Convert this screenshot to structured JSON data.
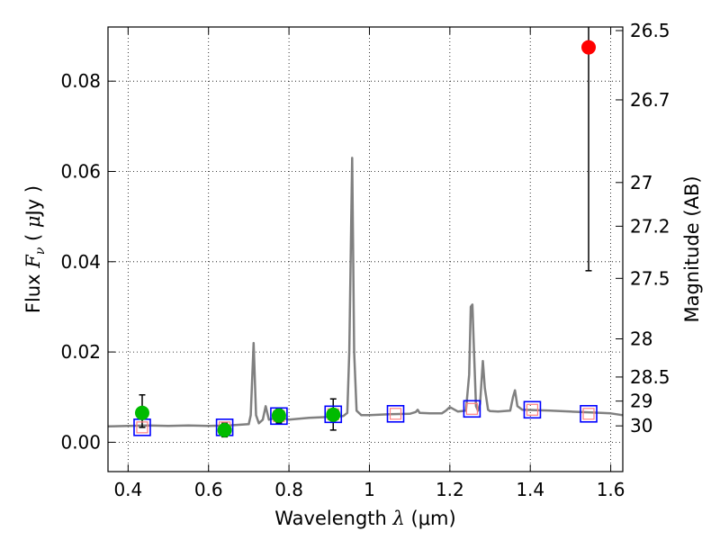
{
  "chart_data": {
    "type": "line",
    "xlabel": "Wavelength  λ (μm)",
    "xlabel_parts": {
      "prefix": "Wavelength  ",
      "symbol": "λ",
      "unit": " (μm)"
    },
    "ylabel": "Flux  Fν  ( μJy )",
    "ylabel_parts": {
      "prefix": "Flux  ",
      "symbol": "F",
      "sub": "ν",
      "unit_open": "  ( ",
      "mu": "μ",
      "unit_rest": "Jy )"
    },
    "y2label": "Magnitude (AB)",
    "xlim": [
      0.35,
      1.63
    ],
    "ylim": [
      -0.0065,
      0.092
    ],
    "grid": true,
    "x_ticks": [
      {
        "value": 0.4,
        "label": "0.4"
      },
      {
        "value": 0.6,
        "label": "0.6"
      },
      {
        "value": 0.8,
        "label": "0.8"
      },
      {
        "value": 1.0,
        "label": "1"
      },
      {
        "value": 1.2,
        "label": "1.2"
      },
      {
        "value": 1.4,
        "label": "1.4"
      },
      {
        "value": 1.6,
        "label": "1.6"
      }
    ],
    "y_ticks": [
      {
        "value": 0.0,
        "label": "0.00"
      },
      {
        "value": 0.02,
        "label": "0.02"
      },
      {
        "value": 0.04,
        "label": "0.04"
      },
      {
        "value": 0.06,
        "label": "0.06"
      },
      {
        "value": 0.08,
        "label": "0.08"
      }
    ],
    "y2_ticks": [
      {
        "value": 26.5,
        "label": "26.5"
      },
      {
        "value": 26.7,
        "label": "26.7"
      },
      {
        "value": 27.0,
        "label": "27"
      },
      {
        "value": 27.2,
        "label": "27.2"
      },
      {
        "value": 27.5,
        "label": "27.5"
      },
      {
        "value": 28.0,
        "label": "28"
      },
      {
        "value": 28.5,
        "label": "28.5"
      },
      {
        "value": 29.0,
        "label": "29"
      },
      {
        "value": 30.0,
        "label": "30"
      }
    ],
    "colors": {
      "spectrum": "#808080",
      "detection": "#00bb00",
      "upper_limit": "#ff0000",
      "model": "#0000ff",
      "model_inner": "#ff8080",
      "errorbar": "#000000",
      "grid": "#000000"
    },
    "spectrum": {
      "x": [
        0.35,
        0.4,
        0.45,
        0.5,
        0.55,
        0.6,
        0.65,
        0.7,
        0.705,
        0.712,
        0.718,
        0.725,
        0.735,
        0.742,
        0.75,
        0.775,
        0.8,
        0.85,
        0.9,
        0.935,
        0.945,
        0.95,
        0.957,
        0.962,
        0.968,
        0.98,
        1.0,
        1.05,
        1.1,
        1.115,
        1.12,
        1.125,
        1.15,
        1.18,
        1.19,
        1.2,
        1.22,
        1.24,
        1.248,
        1.252,
        1.256,
        1.26,
        1.265,
        1.27,
        1.275,
        1.282,
        1.287,
        1.295,
        1.3,
        1.32,
        1.35,
        1.357,
        1.362,
        1.368,
        1.38,
        1.45,
        1.5,
        1.55,
        1.6,
        1.63
      ],
      "y": [
        0.0035,
        0.0036,
        0.0037,
        0.0036,
        0.0037,
        0.0036,
        0.0037,
        0.004,
        0.006,
        0.022,
        0.006,
        0.0042,
        0.005,
        0.008,
        0.005,
        0.0055,
        0.005,
        0.0054,
        0.0056,
        0.0058,
        0.0065,
        0.02,
        0.063,
        0.02,
        0.007,
        0.006,
        0.006,
        0.0062,
        0.0063,
        0.0067,
        0.0072,
        0.0065,
        0.0064,
        0.0064,
        0.007,
        0.0078,
        0.0068,
        0.007,
        0.015,
        0.03,
        0.0305,
        0.02,
        0.008,
        0.007,
        0.0085,
        0.018,
        0.012,
        0.0072,
        0.0069,
        0.0068,
        0.007,
        0.01,
        0.0115,
        0.008,
        0.0072,
        0.007,
        0.0068,
        0.0066,
        0.0064,
        0.006
      ]
    },
    "series": [
      {
        "marker": "square",
        "values": [
          {
            "x": 0.435,
            "y": 0.0033
          },
          {
            "x": 0.64,
            "y": 0.0033
          },
          {
            "x": 0.775,
            "y": 0.0058
          },
          {
            "x": 0.91,
            "y": 0.0062
          },
          {
            "x": 1.065,
            "y": 0.0063
          },
          {
            "x": 1.255,
            "y": 0.0074
          },
          {
            "x": 1.405,
            "y": 0.0072
          },
          {
            "x": 1.545,
            "y": 0.0063
          }
        ]
      },
      {
        "marker": "circle",
        "values": [
          {
            "x": 0.435,
            "y": 0.0065,
            "yerr_lo": 0.0033,
            "yerr_hi": 0.0105
          },
          {
            "x": 0.64,
            "y": 0.0027,
            "yerr_lo": 0.0012,
            "yerr_hi": 0.0042
          },
          {
            "x": 0.775,
            "y": 0.0059,
            "yerr_lo": 0.0043,
            "yerr_hi": 0.0075
          },
          {
            "x": 0.91,
            "y": 0.0061,
            "yerr_lo": 0.0027,
            "yerr_hi": 0.0096
          }
        ]
      },
      {
        "marker": "circle",
        "values": [
          {
            "x": 1.545,
            "y": 0.0875,
            "yerr_lo": 0.038,
            "yerr_hi": 0.092
          }
        ]
      }
    ]
  }
}
